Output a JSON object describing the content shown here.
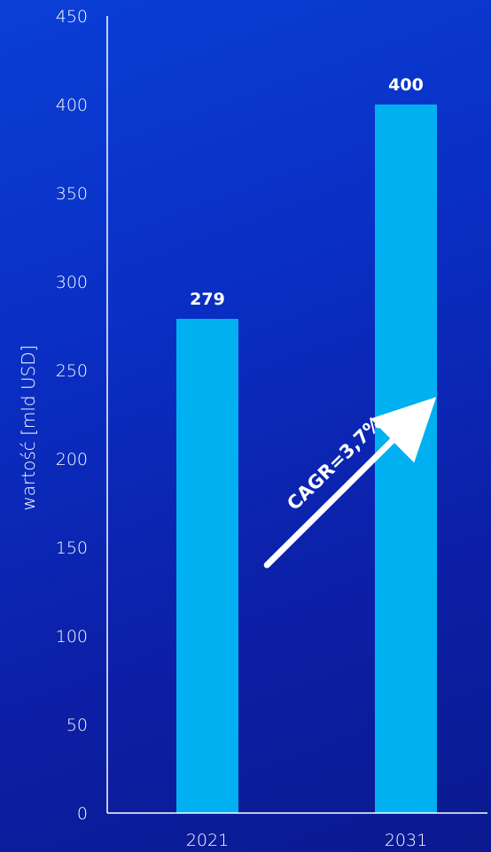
{
  "chart_data": {
    "type": "bar",
    "categories": [
      "2021",
      "2031"
    ],
    "values": [
      279,
      400
    ],
    "data_labels": [
      "279",
      "400"
    ],
    "ylabel": "wartość [mld USD]",
    "ylim": [
      0,
      450
    ],
    "yticks": [
      0,
      50,
      100,
      150,
      200,
      250,
      300,
      350,
      400,
      450
    ],
    "grid": false,
    "annotation": {
      "text": "CAGR=3,7%",
      "type": "arrow",
      "from": {
        "category_index": 0.3,
        "value": 140
      },
      "to": {
        "category_index": 1.1,
        "value": 228
      }
    },
    "colors": {
      "bar": "#00b0f0",
      "axis": "#ffffff",
      "text": "#ffffff",
      "arrow": "#ffffff",
      "background_start": "#0a3fd6",
      "background_end": "#0a1a8f"
    }
  }
}
